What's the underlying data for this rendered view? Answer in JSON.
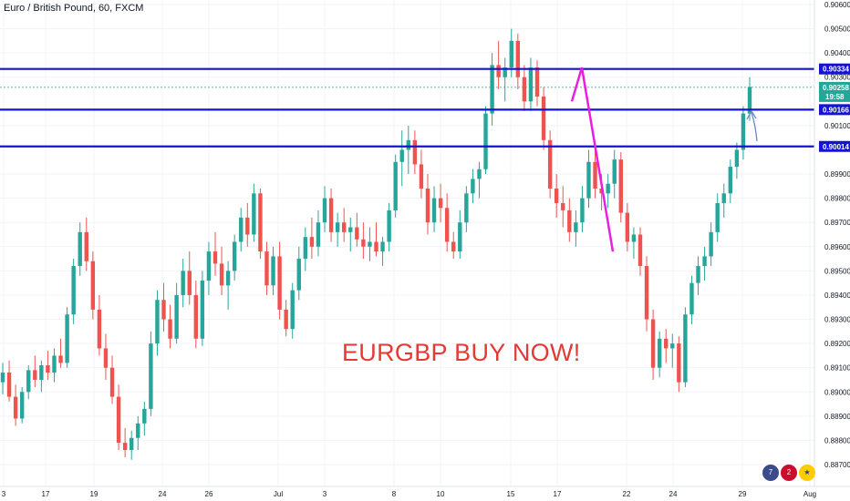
{
  "title": "Euro / British Pound, 60, FXCM",
  "annotation": "EURGBP BUY NOW!",
  "colors": {
    "up": "#26a69a",
    "down": "#ef5350",
    "level_line": "#1414d2",
    "level_label_bg": "#1414d2",
    "price_label_bg": "#26a69a",
    "trend_line": "#e91ee0",
    "arrow": "#6e86c8",
    "annotation": "#e53935",
    "axis_text": "#131722"
  },
  "price_label": {
    "price": "0.90258",
    "countdown": "19:58"
  },
  "chart_data": {
    "type": "line",
    "title": "Euro / British Pound, 60, FXCM",
    "xlabel": "",
    "ylabel": "",
    "ylim": [
      0.8865,
      0.906
    ],
    "x_ticks": [
      "3",
      "17",
      "19",
      "24",
      "26",
      "Jul",
      "3",
      "8",
      "10",
      "15",
      "17",
      "22",
      "24",
      "29",
      "Aug"
    ],
    "y_ticks": [
      "0.90600",
      "0.90500",
      "0.90400",
      "0.90300",
      "0.90100",
      "0.89900",
      "0.89800",
      "0.89700",
      "0.89600",
      "0.89500",
      "0.89400",
      "0.89300",
      "0.89200",
      "0.89100",
      "0.89000",
      "0.88900",
      "0.88800",
      "0.88700"
    ],
    "horizontal_levels": [
      0.90334,
      0.90166,
      0.90014
    ],
    "current_price": 0.90258,
    "series": [
      {
        "values": [
          [
            0.8904,
            0.8912,
            0.8899,
            0.8908
          ],
          [
            0.8908,
            0.8913,
            0.8896,
            0.8898
          ],
          [
            0.8898,
            0.8903,
            0.8886,
            0.8889
          ],
          [
            0.8889,
            0.8902,
            0.8887,
            0.89
          ],
          [
            0.89,
            0.8911,
            0.8897,
            0.8909
          ],
          [
            0.8909,
            0.8915,
            0.8902,
            0.8905
          ],
          [
            0.8905,
            0.8913,
            0.89,
            0.8911
          ],
          [
            0.8911,
            0.8917,
            0.8905,
            0.8908
          ],
          [
            0.8908,
            0.8918,
            0.8904,
            0.8915
          ],
          [
            0.8915,
            0.8922,
            0.891,
            0.8912
          ],
          [
            0.8912,
            0.8935,
            0.891,
            0.8932
          ],
          [
            0.8932,
            0.8955,
            0.8928,
            0.8952
          ],
          [
            0.8952,
            0.897,
            0.8948,
            0.8966
          ],
          [
            0.8966,
            0.8972,
            0.895,
            0.8954
          ],
          [
            0.8954,
            0.8958,
            0.893,
            0.8934
          ],
          [
            0.8934,
            0.894,
            0.8915,
            0.8918
          ],
          [
            0.8918,
            0.8924,
            0.8905,
            0.891
          ],
          [
            0.891,
            0.8915,
            0.8895,
            0.8898
          ],
          [
            0.8898,
            0.8903,
            0.8876,
            0.8879
          ],
          [
            0.8879,
            0.8885,
            0.8873,
            0.8876
          ],
          [
            0.8876,
            0.8884,
            0.8872,
            0.8881
          ],
          [
            0.8881,
            0.889,
            0.8876,
            0.8887
          ],
          [
            0.8887,
            0.8896,
            0.8882,
            0.8893
          ],
          [
            0.8893,
            0.8925,
            0.889,
            0.892
          ],
          [
            0.892,
            0.8942,
            0.8915,
            0.8938
          ],
          [
            0.8938,
            0.8945,
            0.8925,
            0.893
          ],
          [
            0.893,
            0.8936,
            0.8918,
            0.8922
          ],
          [
            0.8922,
            0.8945,
            0.892,
            0.894
          ],
          [
            0.894,
            0.8955,
            0.8935,
            0.895
          ],
          [
            0.895,
            0.8958,
            0.8936,
            0.894
          ],
          [
            0.894,
            0.8946,
            0.8918,
            0.8922
          ],
          [
            0.8922,
            0.895,
            0.8919,
            0.8946
          ],
          [
            0.8946,
            0.8962,
            0.894,
            0.8958
          ],
          [
            0.8958,
            0.8966,
            0.8948,
            0.8953
          ],
          [
            0.8953,
            0.896,
            0.894,
            0.8944
          ],
          [
            0.8944,
            0.8954,
            0.8934,
            0.895
          ],
          [
            0.895,
            0.8965,
            0.8946,
            0.8962
          ],
          [
            0.8962,
            0.8976,
            0.8958,
            0.8972
          ],
          [
            0.8972,
            0.8978,
            0.896,
            0.8965
          ],
          [
            0.8965,
            0.8986,
            0.8962,
            0.8982
          ],
          [
            0.8982,
            0.8984,
            0.8955,
            0.8958
          ],
          [
            0.8958,
            0.8962,
            0.894,
            0.8944
          ],
          [
            0.8944,
            0.896,
            0.894,
            0.8956
          ],
          [
            0.8956,
            0.8962,
            0.893,
            0.8934
          ],
          [
            0.8934,
            0.8938,
            0.8923,
            0.8926
          ],
          [
            0.8926,
            0.8945,
            0.8922,
            0.8942
          ],
          [
            0.8942,
            0.896,
            0.8938,
            0.8955
          ],
          [
            0.8955,
            0.8968,
            0.895,
            0.8964
          ],
          [
            0.8964,
            0.8972,
            0.8955,
            0.896
          ],
          [
            0.896,
            0.8975,
            0.8956,
            0.897
          ],
          [
            0.897,
            0.8985,
            0.8966,
            0.898
          ],
          [
            0.898,
            0.8984,
            0.8962,
            0.8966
          ],
          [
            0.8966,
            0.8974,
            0.896,
            0.897
          ],
          [
            0.897,
            0.8976,
            0.8962,
            0.8966
          ],
          [
            0.8966,
            0.8972,
            0.8958,
            0.8968
          ],
          [
            0.8968,
            0.8974,
            0.896,
            0.8963
          ],
          [
            0.8963,
            0.897,
            0.8955,
            0.896
          ],
          [
            0.896,
            0.8968,
            0.8954,
            0.8962
          ],
          [
            0.8962,
            0.897,
            0.8956,
            0.8958
          ],
          [
            0.8958,
            0.8964,
            0.8952,
            0.8962
          ],
          [
            0.8962,
            0.8978,
            0.8958,
            0.8975
          ],
          [
            0.8975,
            0.8998,
            0.8972,
            0.8995
          ],
          [
            0.8995,
            0.9008,
            0.8985,
            0.9
          ],
          [
            0.9,
            0.901,
            0.899,
            0.9004
          ],
          [
            0.9004,
            0.9008,
            0.899,
            0.8994
          ],
          [
            0.8994,
            0.9,
            0.898,
            0.8984
          ],
          [
            0.8984,
            0.899,
            0.8965,
            0.897
          ],
          [
            0.897,
            0.8985,
            0.8966,
            0.898
          ],
          [
            0.898,
            0.8986,
            0.897,
            0.8976
          ],
          [
            0.8976,
            0.8982,
            0.8958,
            0.8962
          ],
          [
            0.8962,
            0.8966,
            0.8955,
            0.8958
          ],
          [
            0.8958,
            0.8975,
            0.8955,
            0.897
          ],
          [
            0.897,
            0.8985,
            0.8966,
            0.8982
          ],
          [
            0.8982,
            0.8992,
            0.8978,
            0.8988
          ],
          [
            0.8988,
            0.8995,
            0.898,
            0.8992
          ],
          [
            0.8992,
            0.9018,
            0.899,
            0.9015
          ],
          [
            0.9015,
            0.904,
            0.901,
            0.9035
          ],
          [
            0.9035,
            0.9045,
            0.9025,
            0.903
          ],
          [
            0.903,
            0.9038,
            0.902,
            0.9034
          ],
          [
            0.9034,
            0.905,
            0.903,
            0.9045
          ],
          [
            0.9045,
            0.9048,
            0.9025,
            0.903
          ],
          [
            0.903,
            0.9035,
            0.9016,
            0.902
          ],
          [
            0.902,
            0.9038,
            0.9016,
            0.9034
          ],
          [
            0.9034,
            0.9037,
            0.9018,
            0.9022
          ],
          [
            0.9022,
            0.9026,
            0.9,
            0.9004
          ],
          [
            0.9004,
            0.9008,
            0.898,
            0.8984
          ],
          [
            0.8984,
            0.899,
            0.8972,
            0.8978
          ],
          [
            0.8978,
            0.8985,
            0.8968,
            0.8975
          ],
          [
            0.8975,
            0.898,
            0.8962,
            0.8966
          ],
          [
            0.8966,
            0.8975,
            0.896,
            0.897
          ],
          [
            0.897,
            0.8985,
            0.8966,
            0.898
          ],
          [
            0.898,
            0.9,
            0.8976,
            0.8995
          ],
          [
            0.8995,
            0.9,
            0.898,
            0.8984
          ],
          [
            0.8984,
            0.899,
            0.8975,
            0.8982
          ],
          [
            0.8982,
            0.899,
            0.8976,
            0.8986
          ],
          [
            0.8986,
            0.9,
            0.898,
            0.8996
          ],
          [
            0.8996,
            0.8999,
            0.897,
            0.8974
          ],
          [
            0.8974,
            0.8978,
            0.8958,
            0.8962
          ],
          [
            0.8962,
            0.8968,
            0.8955,
            0.8965
          ],
          [
            0.8965,
            0.8968,
            0.8948,
            0.8952
          ],
          [
            0.8952,
            0.8956,
            0.8925,
            0.893
          ],
          [
            0.893,
            0.8934,
            0.8905,
            0.891
          ],
          [
            0.891,
            0.8925,
            0.8906,
            0.8922
          ],
          [
            0.8922,
            0.8926,
            0.8912,
            0.8918
          ],
          [
            0.8918,
            0.8924,
            0.891,
            0.892
          ],
          [
            0.892,
            0.8923,
            0.89,
            0.8904
          ],
          [
            0.8904,
            0.8935,
            0.8902,
            0.8932
          ],
          [
            0.8932,
            0.8948,
            0.8928,
            0.8945
          ],
          [
            0.8945,
            0.8956,
            0.894,
            0.8952
          ],
          [
            0.8952,
            0.896,
            0.8946,
            0.8956
          ],
          [
            0.8956,
            0.897,
            0.8952,
            0.8966
          ],
          [
            0.8966,
            0.8982,
            0.8962,
            0.8978
          ],
          [
            0.8978,
            0.8986,
            0.8972,
            0.8982
          ],
          [
            0.8982,
            0.8996,
            0.8978,
            0.8993
          ],
          [
            0.8993,
            0.9003,
            0.8988,
            0.9
          ],
          [
            0.9,
            0.9018,
            0.8996,
            0.9015
          ],
          [
            0.9015,
            0.903,
            0.9012,
            0.9026
          ]
        ]
      }
    ]
  },
  "trend_points": [
    0.902,
    0.9034,
    0.8958
  ],
  "bottom_icons": [
    "calendar-icon",
    "uk-flag-icon",
    "eu-flag-icon"
  ],
  "bottom_badges": {
    "calendar": "7",
    "uk": "2"
  }
}
